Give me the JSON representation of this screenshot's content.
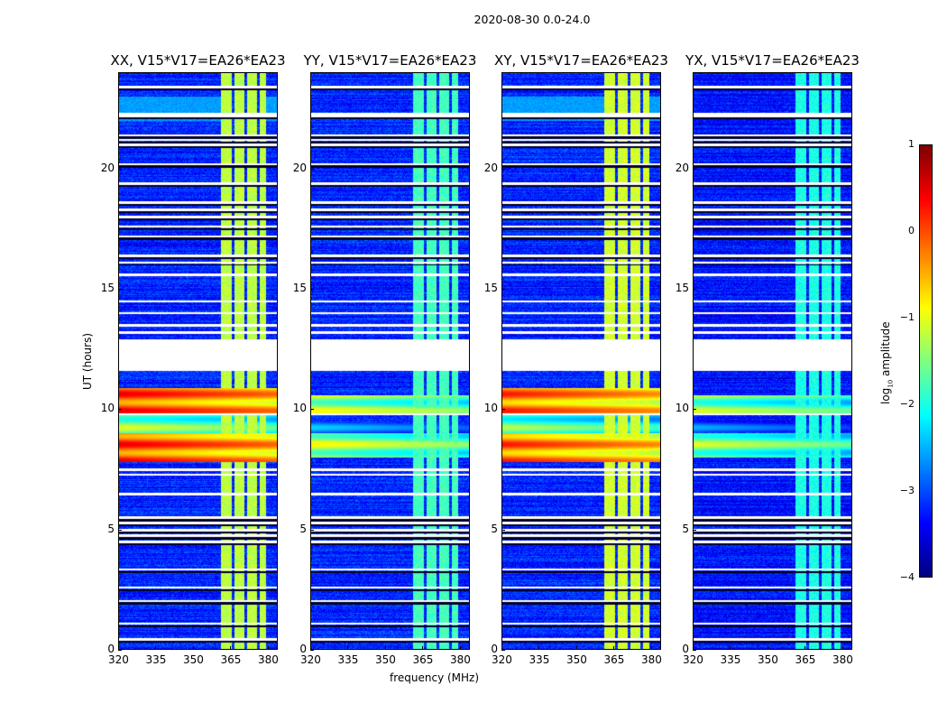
{
  "chart_data": {
    "type": "heatmap",
    "title": "2020-08-30 0.0-24.0",
    "xlabel": "frequency (MHz)",
    "ylabel": "UT (hours)",
    "xlim": [
      320,
      384
    ],
    "ylim": [
      0,
      24
    ],
    "xticks": [
      "320",
      "335",
      "350",
      "365",
      "380"
    ],
    "xtick_values": [
      320,
      335,
      350,
      365,
      380
    ],
    "yticks": [
      "0",
      "5",
      "10",
      "15",
      "20"
    ],
    "ytick_values": [
      0,
      5,
      10,
      15,
      20
    ],
    "colorbar": {
      "label_main": "log",
      "label_sub": "10",
      "label_rest": " amplitude",
      "ticks": [
        "1",
        "0",
        "−1",
        "−2",
        "−3",
        "−4"
      ],
      "tick_values": [
        1,
        0,
        -1,
        -2,
        -3,
        -4
      ],
      "range": [
        -4,
        1
      ],
      "colormap": "jet"
    },
    "band_mhz": [
      361,
      379
    ],
    "gap_hours": [
      11.6,
      12.9
    ],
    "flag_hours": [
      0.45,
      1.1,
      2.05,
      2.6,
      3.35,
      4.5,
      4.75,
      5.0,
      5.3,
      5.5,
      6.5,
      7.3,
      7.5,
      9.8,
      13.2,
      13.5,
      14.0,
      14.5,
      15.6,
      16.1,
      16.4,
      17.2,
      17.6,
      18.0,
      18.3,
      18.6,
      19.4,
      20.2,
      21.0,
      21.2,
      21.4,
      22.2,
      22.3,
      23.4
    ],
    "panels": [
      {
        "title": "XX, V15*V17=EA26*EA23",
        "background": -3.2,
        "band": -1.2,
        "rfi_hours": [
          7.8,
          10.9
        ],
        "rfi_level": 0.0
      },
      {
        "title": "YY, V15*V17=EA26*EA23",
        "background": -3.2,
        "band": -1.8,
        "rfi_hours": [
          8.0,
          10.6
        ],
        "rfi_level": -1.3
      },
      {
        "title": "XY, V15*V17=EA26*EA23",
        "background": -3.2,
        "band": -1.1,
        "rfi_hours": [
          7.8,
          10.9
        ],
        "rfi_level": -0.2
      },
      {
        "title": "YX, V15*V17=EA26*EA23",
        "background": -3.3,
        "band": -2.0,
        "rfi_hours": [
          8.0,
          10.6
        ],
        "rfi_level": -1.5
      }
    ]
  }
}
